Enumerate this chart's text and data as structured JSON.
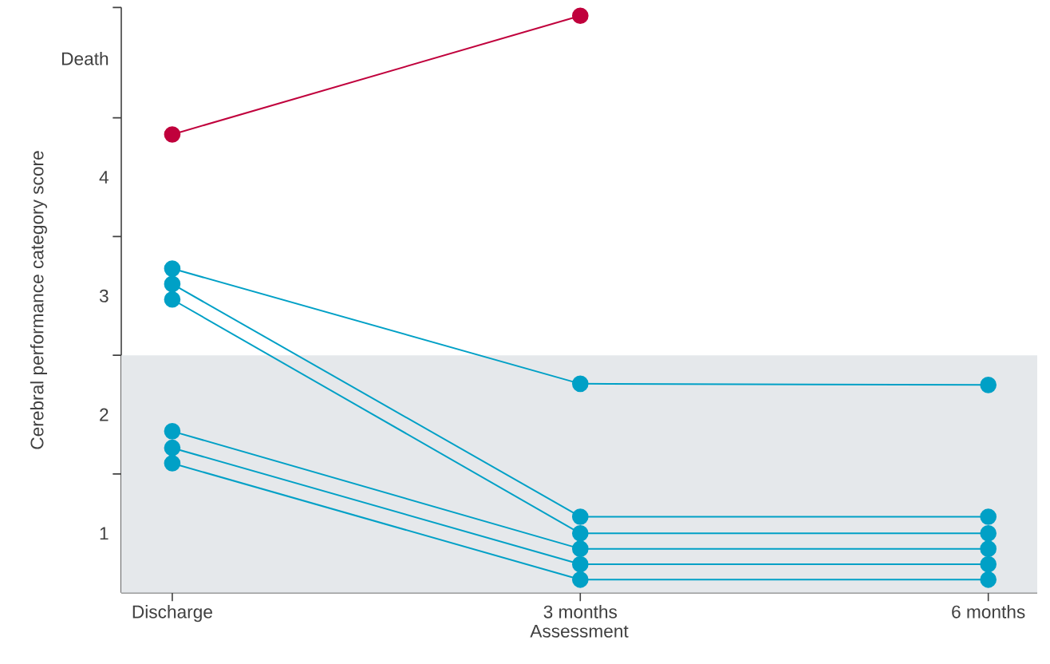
{
  "chart_data": {
    "type": "line",
    "xlabel": "Assessment",
    "ylabel": "Cerebral performance category score",
    "categories": [
      "Discharge",
      "3 months",
      "6 months"
    ],
    "series": [
      {
        "color": "#c0003c",
        "values": [
          4.36,
          5.36,
          null
        ]
      },
      {
        "color": "#00a0c6",
        "values": [
          3.23,
          2.26,
          2.25
        ]
      },
      {
        "color": "#00a0c6",
        "values": [
          3.1,
          1.14,
          1.14
        ]
      },
      {
        "color": "#00a0c6",
        "values": [
          2.97,
          1.0,
          1.0
        ]
      },
      {
        "color": "#00a0c6",
        "values": [
          1.86,
          0.87,
          0.87
        ]
      },
      {
        "color": "#00a0c6",
        "values": [
          1.72,
          0.74,
          0.74
        ]
      },
      {
        "color": "#00a0c6",
        "values": [
          1.59,
          0.61,
          0.61
        ]
      }
    ],
    "ylim": [
      0.5,
      5.43
    ],
    "yticks": [
      1,
      2,
      3,
      4,
      {
        "value": 5,
        "label": "Death"
      },
      {
        "value": 1.5,
        "label": null
      },
      {
        "value": 2.5,
        "label": null
      },
      {
        "value": 3.5,
        "label": null
      },
      {
        "value": 4.5,
        "label": null
      },
      {
        "value": 5.43,
        "label": null
      }
    ],
    "bands": [
      {
        "axis": "y",
        "from": 0.5,
        "to": 2.5,
        "color": "#e5e8eb"
      }
    ],
    "marker": "circle",
    "line_style": "solid",
    "grid": false,
    "legend": false
  }
}
